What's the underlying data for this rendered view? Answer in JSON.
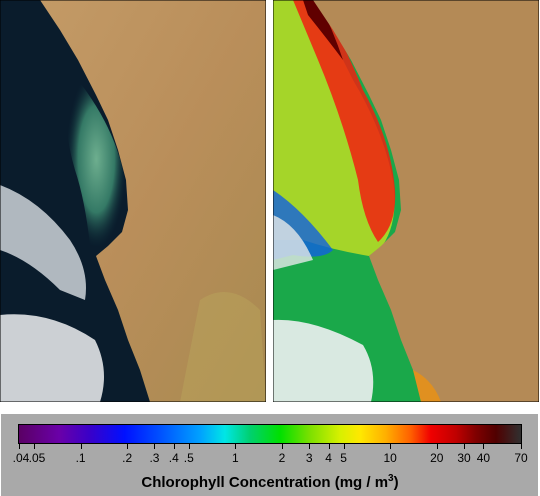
{
  "legend": {
    "title_main": "Chlorophyll  Concentration  (mg / m",
    "title_sup": "3",
    "title_end": ")",
    "tick_labels": [
      ".04",
      ".05",
      ".1",
      ".2",
      ".3",
      ".4",
      ".5",
      "1",
      "2",
      "3",
      "4",
      "5",
      "10",
      "20",
      "30",
      "40",
      "70"
    ],
    "scale": "logarithmic",
    "range": [
      0.04,
      70
    ],
    "colors": [
      "#5a0064",
      "#0010ff",
      "#00e6e6",
      "#00e000",
      "#ffe800",
      "#f00000",
      "#800000",
      "#303030"
    ]
  },
  "panels": {
    "left": "true-color satellite image",
    "right": "chlorophyll concentration false-color image"
  }
}
